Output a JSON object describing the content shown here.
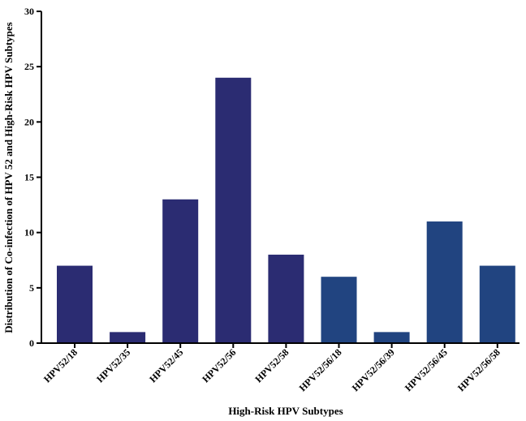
{
  "chart_data": {
    "type": "bar",
    "title": "",
    "xlabel": "High-Risk HPV Subtypes",
    "ylabel": "Distribution of Co-infection of HPV 52 and High-Risk HPV Subtypes",
    "ylim": [
      0,
      30
    ],
    "yticks": [
      0,
      5,
      10,
      15,
      20,
      25,
      30
    ],
    "grid": false,
    "categories": [
      "HPV52/18",
      "HPV52/35",
      "HPV52/45",
      "HPV52/56",
      "HPV52/58",
      "HPV52/56/18",
      "HPV52/56/39",
      "HPV52/56/45",
      "HPV52/56/58"
    ],
    "values": [
      7,
      1,
      13,
      24,
      8,
      6,
      1,
      11,
      7
    ],
    "bar_colors": [
      "#2b2c72",
      "#2b2c72",
      "#2b2c72",
      "#2b2c72",
      "#2b2c72",
      "#214480",
      "#214480",
      "#214480",
      "#214480"
    ]
  }
}
